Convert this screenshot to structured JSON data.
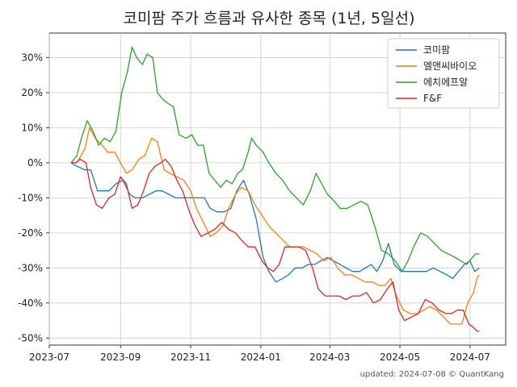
{
  "chart_data": {
    "type": "line",
    "title": "코미팜 주가 흐름과 유사한 종목 (1년, 5일선)",
    "footnote": "updated: 2024-07-08 © QuantKang",
    "xlabel": "",
    "ylabel": "",
    "x_ticks": [
      "2023-07",
      "2023-09",
      "2023-11",
      "2024-01",
      "2024-03",
      "2024-05",
      "2024-07"
    ],
    "x_range": [
      "2023-07-01",
      "2024-08-01"
    ],
    "y_ticks": [
      "30%",
      "20%",
      "10%",
      "0%",
      "-10%",
      "-20%",
      "-30%",
      "-40%",
      "-50%"
    ],
    "y_range": [
      -52,
      37
    ],
    "grid": true,
    "legend": "top-right",
    "colors": {
      "코미팜": "#1f77b4",
      "엘앤씨바이오": "#ff7f0e",
      "에치에프알": "#2ca02c",
      "F&F": "#d62728"
    },
    "series": [
      {
        "name": "코미팜",
        "points": [
          [
            "2023-07-20",
            0
          ],
          [
            "2023-07-25",
            -1
          ],
          [
            "2023-08-01",
            -2
          ],
          [
            "2023-08-06",
            -2
          ],
          [
            "2023-08-12",
            -8
          ],
          [
            "2023-08-17",
            -8
          ],
          [
            "2023-08-22",
            -8
          ],
          [
            "2023-08-28",
            -6
          ],
          [
            "2023-09-03",
            -5
          ],
          [
            "2023-09-09",
            -9
          ],
          [
            "2023-09-14",
            -10
          ],
          [
            "2023-09-20",
            -10
          ],
          [
            "2023-09-26",
            -9
          ],
          [
            "2023-10-02",
            -8
          ],
          [
            "2023-10-07",
            -8
          ],
          [
            "2023-10-13",
            -9
          ],
          [
            "2023-10-19",
            -10
          ],
          [
            "2023-10-25",
            -10
          ],
          [
            "2023-11-01",
            -10
          ],
          [
            "2023-11-07",
            -10
          ],
          [
            "2023-11-13",
            -10
          ],
          [
            "2023-11-18",
            -13
          ],
          [
            "2023-11-24",
            -14
          ],
          [
            "2023-11-30",
            -14
          ],
          [
            "2023-12-06",
            -13
          ],
          [
            "2023-12-11",
            -8
          ],
          [
            "2023-12-17",
            -5
          ],
          [
            "2023-12-22",
            -9
          ],
          [
            "2023-12-28",
            -16
          ],
          [
            "2024-01-03",
            -27
          ],
          [
            "2024-01-08",
            -31
          ],
          [
            "2024-01-14",
            -34
          ],
          [
            "2024-01-20",
            -33
          ],
          [
            "2024-01-25",
            -32
          ],
          [
            "2024-01-31",
            -30
          ],
          [
            "2024-02-06",
            -30
          ],
          [
            "2024-02-11",
            -29
          ],
          [
            "2024-02-17",
            -29
          ],
          [
            "2024-02-22",
            -28
          ],
          [
            "2024-02-28",
            -27
          ],
          [
            "2024-03-04",
            -28
          ],
          [
            "2024-03-10",
            -29
          ],
          [
            "2024-03-15",
            -30
          ],
          [
            "2024-03-21",
            -31
          ],
          [
            "2024-03-27",
            -31
          ],
          [
            "2024-04-01",
            -30
          ],
          [
            "2024-04-06",
            -29
          ],
          [
            "2024-04-11",
            -31
          ],
          [
            "2024-04-16",
            -28
          ],
          [
            "2024-04-21",
            -23
          ],
          [
            "2024-04-26",
            -29
          ],
          [
            "2024-05-02",
            -31
          ],
          [
            "2024-05-07",
            -31
          ],
          [
            "2024-05-13",
            -31
          ],
          [
            "2024-05-18",
            -31
          ],
          [
            "2024-05-24",
            -31
          ],
          [
            "2024-05-30",
            -30
          ],
          [
            "2024-06-05",
            -31
          ],
          [
            "2024-06-11",
            -32
          ],
          [
            "2024-06-16",
            -33
          ],
          [
            "2024-06-21",
            -31
          ],
          [
            "2024-06-26",
            -29
          ],
          [
            "2024-07-01",
            -28
          ],
          [
            "2024-07-05",
            -31
          ],
          [
            "2024-07-09",
            -30
          ]
        ]
      },
      {
        "name": "엘앤씨바이오",
        "points": [
          [
            "2023-07-20",
            0
          ],
          [
            "2023-07-25",
            0
          ],
          [
            "2023-08-01",
            4
          ],
          [
            "2023-08-05",
            10
          ],
          [
            "2023-08-10",
            7
          ],
          [
            "2023-08-16",
            5
          ],
          [
            "2023-08-21",
            3
          ],
          [
            "2023-08-27",
            3
          ],
          [
            "2023-09-01",
            0
          ],
          [
            "2023-09-06",
            -3
          ],
          [
            "2023-09-11",
            -2
          ],
          [
            "2023-09-17",
            1
          ],
          [
            "2023-09-22",
            2
          ],
          [
            "2023-09-28",
            7
          ],
          [
            "2023-10-03",
            6
          ],
          [
            "2023-10-09",
            -2
          ],
          [
            "2023-10-14",
            -3
          ],
          [
            "2023-10-20",
            -4
          ],
          [
            "2023-10-26",
            -5
          ],
          [
            "2023-11-01",
            -8
          ],
          [
            "2023-11-06",
            -13
          ],
          [
            "2023-11-12",
            -17
          ],
          [
            "2023-11-18",
            -21
          ],
          [
            "2023-11-23",
            -20
          ],
          [
            "2023-11-29",
            -18
          ],
          [
            "2023-12-04",
            -13
          ],
          [
            "2023-12-10",
            -9
          ],
          [
            "2023-12-15",
            -7
          ],
          [
            "2023-12-21",
            -8
          ],
          [
            "2023-12-27",
            -12
          ],
          [
            "2024-01-02",
            -15
          ],
          [
            "2024-01-08",
            -18
          ],
          [
            "2024-01-14",
            -20
          ],
          [
            "2024-01-20",
            -22
          ],
          [
            "2024-01-26",
            -24
          ],
          [
            "2024-02-01",
            -24
          ],
          [
            "2024-02-07",
            -24
          ],
          [
            "2024-02-13",
            -25
          ],
          [
            "2024-02-19",
            -26
          ],
          [
            "2024-02-25",
            -28
          ],
          [
            "2024-03-02",
            -27
          ],
          [
            "2024-03-08",
            -30
          ],
          [
            "2024-03-14",
            -32
          ],
          [
            "2024-03-20",
            -32
          ],
          [
            "2024-03-26",
            -33
          ],
          [
            "2024-04-01",
            -34
          ],
          [
            "2024-04-07",
            -34
          ],
          [
            "2024-04-13",
            -35
          ],
          [
            "2024-04-18",
            -35
          ],
          [
            "2024-04-23",
            -33
          ],
          [
            "2024-04-28",
            -38
          ],
          [
            "2024-05-04",
            -42
          ],
          [
            "2024-05-10",
            -43
          ],
          [
            "2024-05-16",
            -43
          ],
          [
            "2024-05-22",
            -42
          ],
          [
            "2024-05-27",
            -41
          ],
          [
            "2024-06-02",
            -42
          ],
          [
            "2024-06-08",
            -44
          ],
          [
            "2024-06-14",
            -46
          ],
          [
            "2024-06-19",
            -46
          ],
          [
            "2024-06-24",
            -46
          ],
          [
            "2024-06-29",
            -40
          ],
          [
            "2024-07-04",
            -37
          ],
          [
            "2024-07-07",
            -33
          ],
          [
            "2024-07-09",
            -32
          ]
        ]
      },
      {
        "name": "에치에프알",
        "points": [
          [
            "2023-07-20",
            0
          ],
          [
            "2023-07-25",
            2
          ],
          [
            "2023-07-29",
            7
          ],
          [
            "2023-08-03",
            12
          ],
          [
            "2023-08-08",
            9
          ],
          [
            "2023-08-13",
            5
          ],
          [
            "2023-08-18",
            7
          ],
          [
            "2023-08-23",
            6
          ],
          [
            "2023-08-28",
            9
          ],
          [
            "2023-09-02",
            20
          ],
          [
            "2023-09-07",
            26
          ],
          [
            "2023-09-11",
            33
          ],
          [
            "2023-09-15",
            30
          ],
          [
            "2023-09-20",
            28
          ],
          [
            "2023-09-24",
            31
          ],
          [
            "2023-09-29",
            30
          ],
          [
            "2023-10-03",
            20
          ],
          [
            "2023-10-08",
            18
          ],
          [
            "2023-10-12",
            17
          ],
          [
            "2023-10-17",
            16
          ],
          [
            "2023-10-22",
            8
          ],
          [
            "2023-10-28",
            7
          ],
          [
            "2023-11-02",
            8
          ],
          [
            "2023-11-07",
            5
          ],
          [
            "2023-11-12",
            5
          ],
          [
            "2023-11-17",
            -3
          ],
          [
            "2023-11-22",
            -5
          ],
          [
            "2023-11-27",
            -7
          ],
          [
            "2023-12-02",
            -5
          ],
          [
            "2023-12-07",
            -6
          ],
          [
            "2023-12-12",
            -3
          ],
          [
            "2023-12-16",
            -2
          ],
          [
            "2023-12-21",
            3
          ],
          [
            "2023-12-24",
            7
          ],
          [
            "2023-12-28",
            5
          ],
          [
            "2024-01-03",
            3
          ],
          [
            "2024-01-08",
            0
          ],
          [
            "2024-01-14",
            -3
          ],
          [
            "2024-01-20",
            -5
          ],
          [
            "2024-01-26",
            -8
          ],
          [
            "2024-02-01",
            -10
          ],
          [
            "2024-02-07",
            -12
          ],
          [
            "2024-02-13",
            -8
          ],
          [
            "2024-02-18",
            -3
          ],
          [
            "2024-02-23",
            -6
          ],
          [
            "2024-02-28",
            -9
          ],
          [
            "2024-03-05",
            -11
          ],
          [
            "2024-03-10",
            -13
          ],
          [
            "2024-03-16",
            -13
          ],
          [
            "2024-03-22",
            -12
          ],
          [
            "2024-03-28",
            -11
          ],
          [
            "2024-04-03",
            -12
          ],
          [
            "2024-04-09",
            -18
          ],
          [
            "2024-04-15",
            -25
          ],
          [
            "2024-04-21",
            -26
          ],
          [
            "2024-04-27",
            -28
          ],
          [
            "2024-05-03",
            -31
          ],
          [
            "2024-05-08",
            -28
          ],
          [
            "2024-05-13",
            -24
          ],
          [
            "2024-05-19",
            -20
          ],
          [
            "2024-05-25",
            -21
          ],
          [
            "2024-05-31",
            -23
          ],
          [
            "2024-06-06",
            -25
          ],
          [
            "2024-06-12",
            -26
          ],
          [
            "2024-06-18",
            -27
          ],
          [
            "2024-06-23",
            -28
          ],
          [
            "2024-06-28",
            -29
          ],
          [
            "2024-07-03",
            -27
          ],
          [
            "2024-07-06",
            -26
          ],
          [
            "2024-07-09",
            -26
          ]
        ]
      },
      {
        "name": "F&F",
        "points": [
          [
            "2023-07-20",
            0
          ],
          [
            "2023-07-24",
            0
          ],
          [
            "2023-07-28",
            1
          ],
          [
            "2023-08-02",
            0
          ],
          [
            "2023-08-06",
            -7
          ],
          [
            "2023-08-11",
            -12
          ],
          [
            "2023-08-16",
            -13
          ],
          [
            "2023-08-22",
            -10
          ],
          [
            "2023-08-27",
            -9
          ],
          [
            "2023-09-01",
            -4
          ],
          [
            "2023-09-06",
            -6
          ],
          [
            "2023-09-11",
            -13
          ],
          [
            "2023-09-16",
            -12
          ],
          [
            "2023-09-21",
            -8
          ],
          [
            "2023-09-26",
            -3
          ],
          [
            "2023-10-01",
            -1
          ],
          [
            "2023-10-06",
            0
          ],
          [
            "2023-10-10",
            1
          ],
          [
            "2023-10-15",
            -1
          ],
          [
            "2023-10-20",
            -5
          ],
          [
            "2023-10-25",
            -8
          ],
          [
            "2023-10-31",
            -14
          ],
          [
            "2023-11-05",
            -18
          ],
          [
            "2023-11-10",
            -21
          ],
          [
            "2023-11-16",
            -20
          ],
          [
            "2023-11-22",
            -19
          ],
          [
            "2023-11-28",
            -17
          ],
          [
            "2023-12-04",
            -19
          ],
          [
            "2023-12-10",
            -20
          ],
          [
            "2023-12-15",
            -22
          ],
          [
            "2023-12-21",
            -24
          ],
          [
            "2023-12-27",
            -24
          ],
          [
            "2024-01-02",
            -28
          ],
          [
            "2024-01-07",
            -30
          ],
          [
            "2024-01-12",
            -31
          ],
          [
            "2024-01-17",
            -29
          ],
          [
            "2024-01-22",
            -24
          ],
          [
            "2024-01-28",
            -24
          ],
          [
            "2024-02-03",
            -24
          ],
          [
            "2024-02-09",
            -25
          ],
          [
            "2024-02-15",
            -30
          ],
          [
            "2024-02-20",
            -36
          ],
          [
            "2024-02-26",
            -38
          ],
          [
            "2024-03-03",
            -38
          ],
          [
            "2024-03-09",
            -38
          ],
          [
            "2024-03-15",
            -39
          ],
          [
            "2024-03-21",
            -38
          ],
          [
            "2024-03-27",
            -38
          ],
          [
            "2024-04-02",
            -37
          ],
          [
            "2024-04-08",
            -40
          ],
          [
            "2024-04-14",
            -39
          ],
          [
            "2024-04-20",
            -36
          ],
          [
            "2024-04-25",
            -34
          ],
          [
            "2024-04-30",
            -42
          ],
          [
            "2024-05-05",
            -45
          ],
          [
            "2024-05-11",
            -44
          ],
          [
            "2024-05-17",
            -43
          ],
          [
            "2024-05-23",
            -39
          ],
          [
            "2024-05-29",
            -40
          ],
          [
            "2024-06-04",
            -42
          ],
          [
            "2024-06-10",
            -43
          ],
          [
            "2024-06-15",
            -43
          ],
          [
            "2024-06-20",
            -42
          ],
          [
            "2024-06-25",
            -42
          ],
          [
            "2024-06-30",
            -46
          ],
          [
            "2024-07-04",
            -47
          ],
          [
            "2024-07-07",
            -48
          ],
          [
            "2024-07-09",
            -48
          ]
        ]
      }
    ]
  }
}
